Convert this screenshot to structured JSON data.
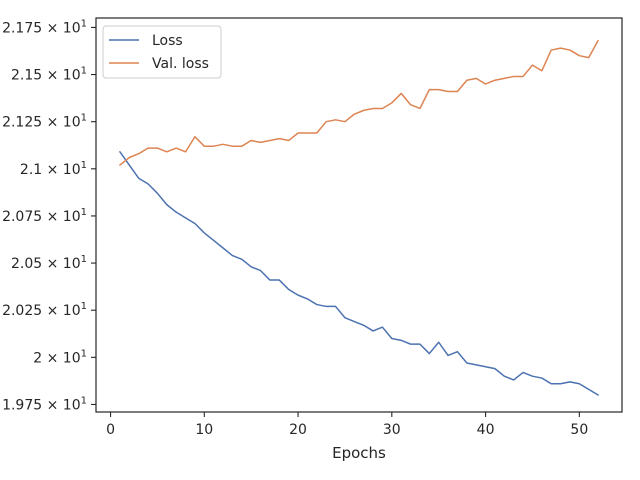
{
  "chart_data": {
    "type": "line",
    "title": "",
    "xlabel": "Epochs",
    "ylabel": "",
    "xlim": [
      -1.55,
      54.55
    ],
    "ylim": [
      19.71,
      21.8
    ],
    "x_ticks": [
      0,
      10,
      20,
      30,
      40,
      50
    ],
    "x_tick_labels": [
      "0",
      "10",
      "20",
      "30",
      "40",
      "50"
    ],
    "y_ticks": [
      19.75,
      20.0,
      20.25,
      20.5,
      20.75,
      21.0,
      21.25,
      21.5,
      21.75
    ],
    "y_tick_mantissas": [
      "1.975",
      "2",
      "2.025",
      "2.05",
      "2.075",
      "2.1",
      "2.125",
      "2.15",
      "2.175"
    ],
    "y_tick_base": "× 10",
    "y_tick_exponent": "1",
    "grid": false,
    "legend_position": "top-left",
    "x": [
      1,
      2,
      3,
      4,
      5,
      6,
      7,
      8,
      9,
      10,
      11,
      12,
      13,
      14,
      15,
      16,
      17,
      18,
      19,
      20,
      21,
      22,
      23,
      24,
      25,
      26,
      27,
      28,
      29,
      30,
      31,
      32,
      33,
      34,
      35,
      36,
      37,
      38,
      39,
      40,
      41,
      42,
      43,
      44,
      45,
      46,
      47,
      48,
      49,
      50,
      51,
      52
    ],
    "series": [
      {
        "name": "Loss",
        "color": "#4c72b0",
        "values": [
          21.09,
          21.02,
          20.95,
          20.92,
          20.87,
          20.81,
          20.77,
          20.74,
          20.71,
          20.66,
          20.62,
          20.58,
          20.54,
          20.52,
          20.48,
          20.46,
          20.41,
          20.41,
          20.36,
          20.33,
          20.31,
          20.28,
          20.27,
          20.27,
          20.21,
          20.19,
          20.17,
          20.14,
          20.16,
          20.1,
          20.09,
          20.07,
          20.07,
          20.02,
          20.08,
          20.01,
          20.03,
          19.97,
          19.96,
          19.95,
          19.94,
          19.9,
          19.88,
          19.92,
          19.9,
          19.89,
          19.86,
          19.86,
          19.87,
          19.86,
          19.83,
          19.8
        ]
      },
      {
        "name": "Val. loss",
        "color": "#dd8452",
        "values": [
          21.02,
          21.06,
          21.08,
          21.11,
          21.11,
          21.09,
          21.11,
          21.09,
          21.17,
          21.12,
          21.12,
          21.13,
          21.12,
          21.12,
          21.15,
          21.14,
          21.15,
          21.16,
          21.15,
          21.19,
          21.19,
          21.19,
          21.25,
          21.26,
          21.25,
          21.29,
          21.31,
          21.32,
          21.32,
          21.35,
          21.4,
          21.34,
          21.32,
          21.42,
          21.42,
          21.41,
          21.41,
          21.47,
          21.48,
          21.45,
          21.47,
          21.48,
          21.49,
          21.49,
          21.55,
          21.52,
          21.63,
          21.64,
          21.63,
          21.6,
          21.59,
          21.68
        ]
      }
    ]
  }
}
